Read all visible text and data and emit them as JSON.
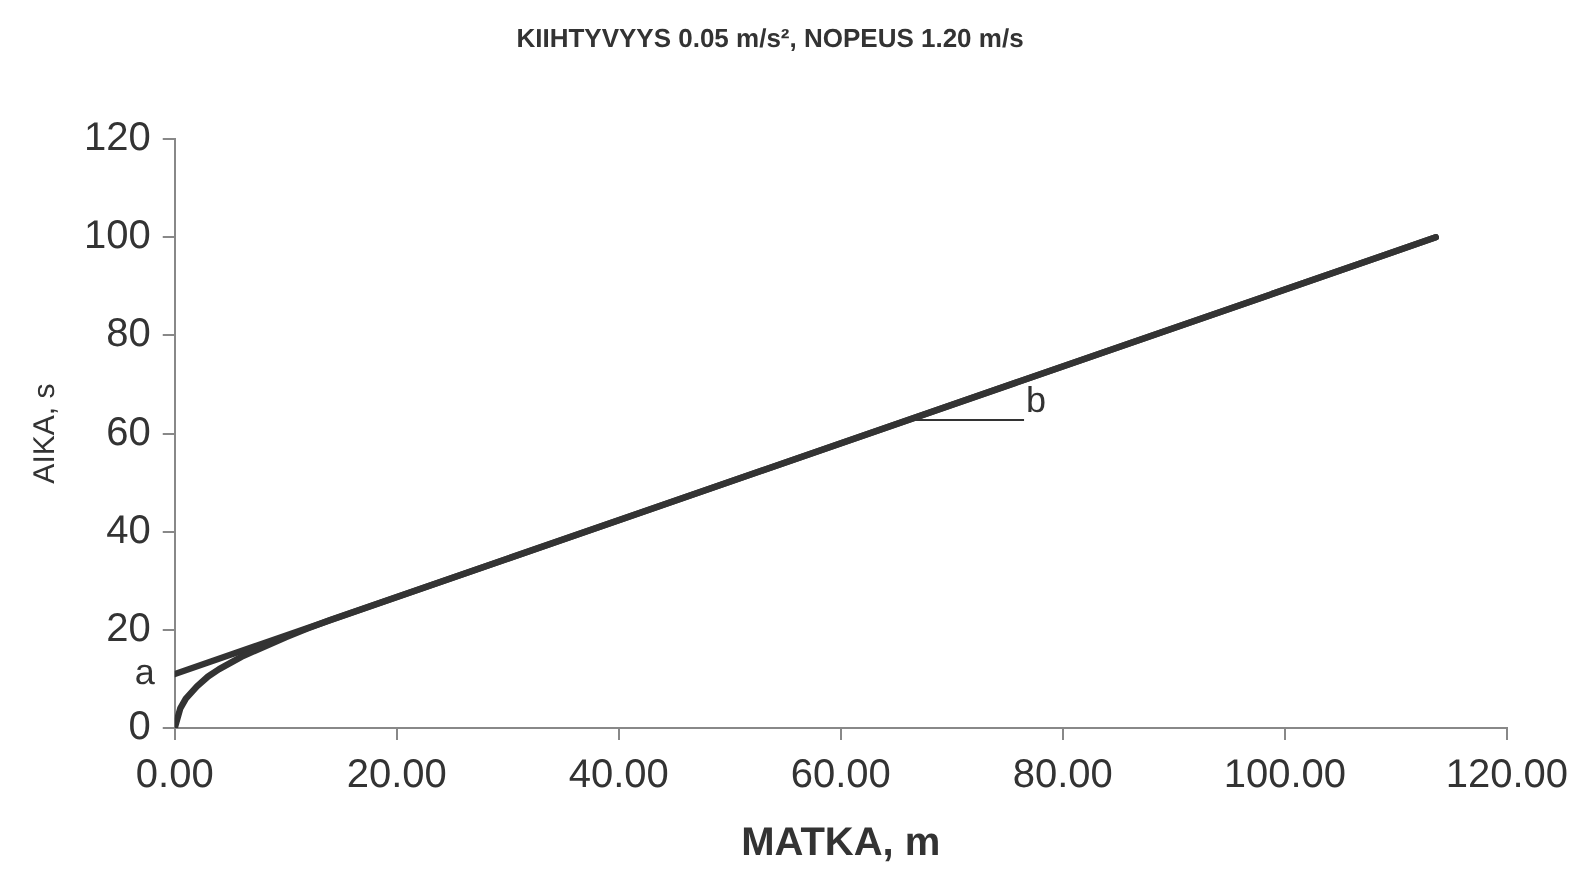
{
  "chart_data": {
    "type": "line",
    "title": "KIIHTYVYYS 0.05 m/s², NOPEUS 1.20 m/s",
    "xlabel": "MATKA, m",
    "ylabel": "AIKA, s",
    "series": [
      {
        "color": "#333333",
        "x": [
          0,
          0.5,
          1,
          2,
          3,
          4,
          6,
          8,
          10,
          12,
          14,
          113.6
        ],
        "values": [
          0,
          4,
          6,
          8.5,
          10.5,
          12,
          14.5,
          16.5,
          18.5,
          20.3,
          22,
          100
        ]
      },
      {
        "name": "b",
        "color": "#333333",
        "x": [
          0,
          113.6
        ],
        "values": [
          11,
          100
        ]
      }
    ],
    "xlim": [
      0,
      120
    ],
    "xticks": [
      {
        "value": 0,
        "label": "0.00"
      },
      {
        "value": 20,
        "label": "20.00"
      },
      {
        "value": 40,
        "label": "40.00"
      },
      {
        "value": 60,
        "label": "60.00"
      },
      {
        "value": 80,
        "label": "80.00"
      },
      {
        "value": 100,
        "label": "100.00"
      },
      {
        "value": 120,
        "label": "120.00"
      }
    ],
    "ylim": [
      0,
      120
    ],
    "yticks": [
      0,
      20,
      40,
      60,
      80,
      100,
      120
    ],
    "grid": false,
    "legend": "center",
    "marker": "none",
    "line_style": "solid",
    "annotations": [
      {
        "text": "a",
        "x": 0,
        "y": 11
      }
    ]
  }
}
